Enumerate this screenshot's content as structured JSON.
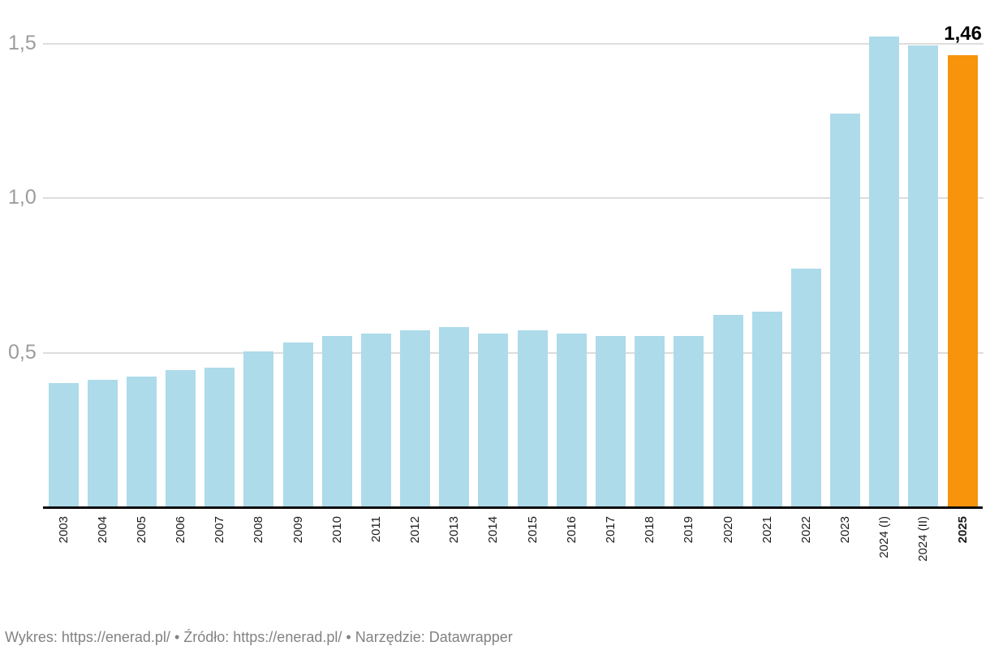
{
  "chart_data": {
    "type": "bar",
    "categories": [
      "2003",
      "2004",
      "2005",
      "2006",
      "2007",
      "2008",
      "2009",
      "2010",
      "2011",
      "2012",
      "2013",
      "2014",
      "2015",
      "2016",
      "2017",
      "2018",
      "2019",
      "2020",
      "2021",
      "2022",
      "2023",
      "2024 (I)",
      "2024 (II)",
      "2025"
    ],
    "values": [
      0.4,
      0.41,
      0.42,
      0.44,
      0.45,
      0.5,
      0.53,
      0.55,
      0.56,
      0.57,
      0.58,
      0.56,
      0.57,
      0.56,
      0.55,
      0.55,
      0.55,
      0.62,
      0.63,
      0.77,
      1.27,
      1.52,
      1.49,
      1.46
    ],
    "highlight_index": 23,
    "annotation": {
      "text": "1,46",
      "value": 1.46
    },
    "y_ticks": [
      {
        "label": "0,5",
        "value": 0.5
      },
      {
        "label": "1,0",
        "value": 1.0
      },
      {
        "label": "1,5",
        "value": 1.5
      }
    ],
    "ylim": [
      0,
      1.64
    ],
    "grid": true,
    "legend": "none",
    "colors": {
      "bar_default": "#ADDBEA",
      "bar_highlight": "#F7940B",
      "gridline": "#DDDDDD",
      "axis": "#0A0A0A",
      "y_label": "#9C9C9C",
      "x_label": "#1C1C1C",
      "footer_text": "#828282"
    }
  },
  "footer": {
    "chart_label": "Wykres:",
    "chart_link": "https://enerad.pl/",
    "separator1": "•",
    "source_label": "Źródło:",
    "source_link": "https://enerad.pl/",
    "separator2": "•",
    "tool_label": "Narzędzie:",
    "tool_name": "Datawrapper"
  }
}
